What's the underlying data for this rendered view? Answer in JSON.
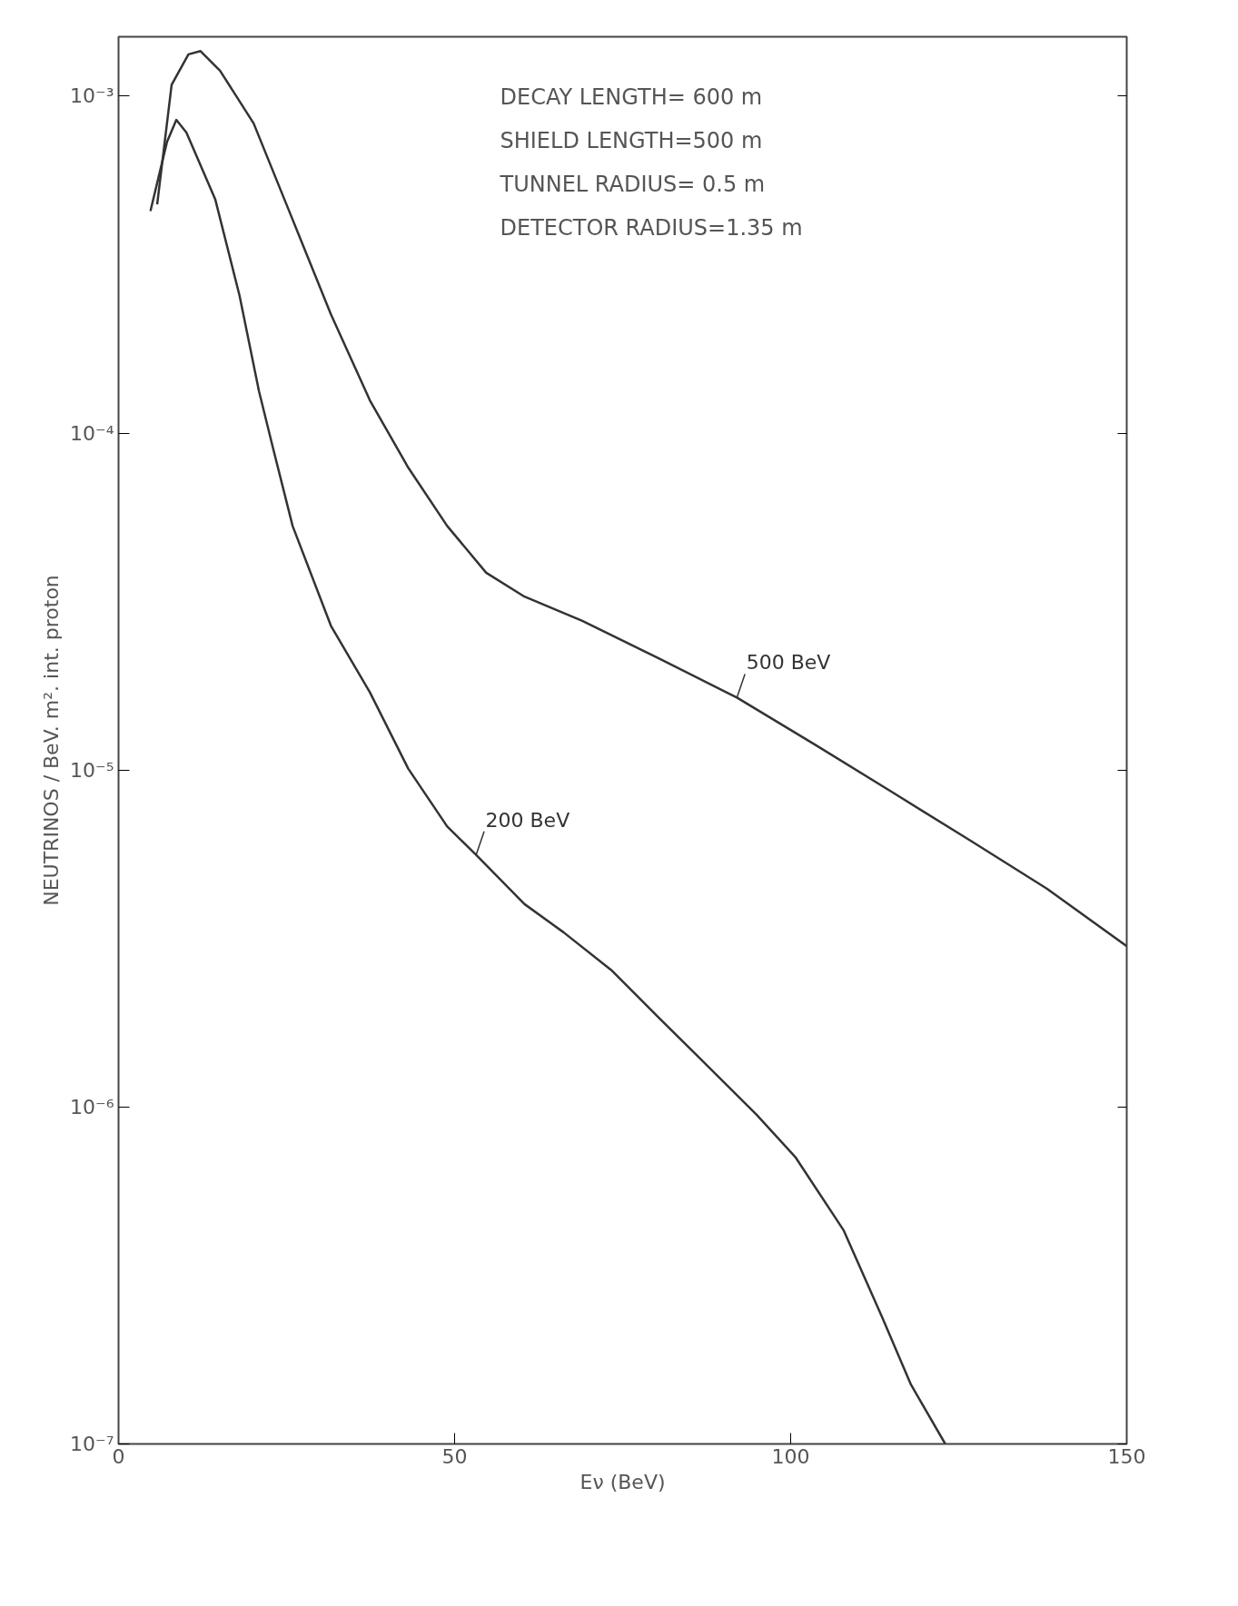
{
  "chart_data": {
    "type": "line",
    "xlabel": "Eν (BeV)",
    "ylabel": "NEUTRINOS / BeV. m². int. proton",
    "log": "y",
    "grid": false,
    "marker": "none",
    "line_style": "solid",
    "xlim": [
      0,
      150
    ],
    "xticks": [
      0,
      50,
      100,
      150
    ],
    "ylim": [
      1e-07,
      0.0015
    ],
    "yticks": [
      {
        "value": 1e-07,
        "label": "10⁻⁷"
      },
      {
        "value": 1e-06,
        "label": "10⁻⁶"
      },
      {
        "value": 1e-05,
        "label": "10⁻⁵"
      },
      {
        "value": 0.0001,
        "label": "10⁻⁴"
      },
      {
        "value": 0.001,
        "label": "10⁻³"
      }
    ],
    "annotations": [
      "DECAY LENGTH= 600 m",
      "SHIELD LENGTH=500 m",
      "TUNNEL RADIUS= 0.5 m",
      "DETECTOR RADIUS=1.35 m"
    ],
    "series": [
      {
        "name": "500 BeV",
        "color": "#333333",
        "x": [
          5.75,
          7.9,
          10.4,
          12.2,
          15.1,
          20.1,
          25.9,
          31.6,
          37.4,
          43.1,
          48.9,
          54.7,
          60.4,
          69.0,
          80.5,
          92.0,
          103.6,
          115.1,
          126.6,
          138.1,
          150
        ],
        "values": [
          0.000477,
          0.00108,
          0.00133,
          0.00136,
          0.00119,
          0.00083,
          0.00043,
          0.000225,
          0.000125,
          7.9e-05,
          5.3e-05,
          3.85e-05,
          3.27e-05,
          2.77e-05,
          2.14e-05,
          1.64e-05,
          1.19e-05,
          8.6e-06,
          6.2e-06,
          4.45e-06,
          3e-06
        ]
      },
      {
        "name": "200 BeV",
        "color": "#333333",
        "x": [
          4.75,
          7.2,
          8.6,
          10.1,
          14.4,
          18.0,
          20.9,
          23.0,
          25.9,
          31.6,
          37.4,
          43.1,
          48.9,
          53.2,
          60.4,
          66.2,
          73.3,
          80.5,
          87.7,
          94.9,
          100.7,
          107.9,
          113.6,
          117.9,
          123.0
        ],
        "values": [
          0.000456,
          0.00073,
          0.00085,
          0.00078,
          0.000493,
          0.000256,
          0.000133,
          9e-05,
          5.3e-05,
          2.68e-05,
          1.7e-05,
          1.01e-05,
          6.8e-06,
          5.6e-06,
          4e-06,
          3.3e-06,
          2.55e-06,
          1.83e-06,
          1.32e-06,
          9.5e-07,
          7.1e-07,
          4.3e-07,
          2.38e-07,
          1.5e-07,
          1e-07
        ]
      }
    ]
  }
}
